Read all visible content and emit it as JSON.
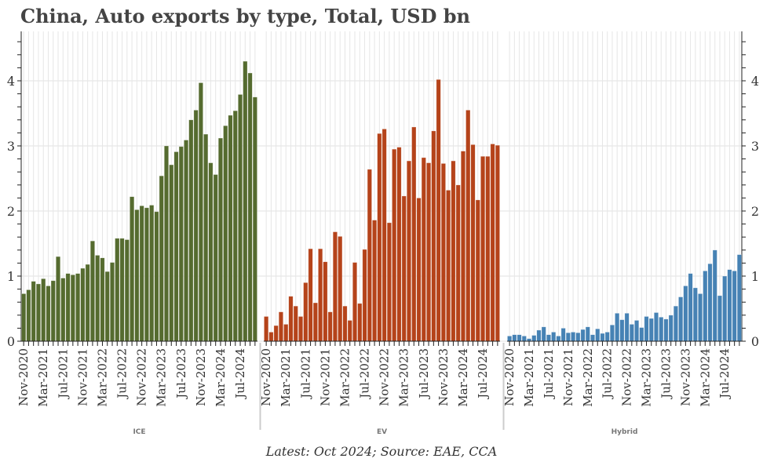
{
  "chart_data": {
    "type": "bar",
    "title": "China, Auto exports by type, Total, USD bn",
    "caption": "Latest: Oct 2024; Source: EAE, CCA",
    "ylim": [
      0,
      4.75
    ],
    "yticks": [
      "0",
      "1",
      "2",
      "3",
      "4"
    ],
    "grid": true,
    "x_tick_labels": [
      "Nov-2020",
      "Mar-2021",
      "Jul-2021",
      "Nov-2021",
      "Mar-2022",
      "Jul-2022",
      "Nov-2022",
      "Mar-2023",
      "Jul-2023",
      "Nov-2023",
      "Mar-2024",
      "Jul-2024"
    ],
    "x_range": [
      "Nov-2020",
      "Oct-2024"
    ],
    "panels": [
      {
        "name": "ICE",
        "color": "#556b2f",
        "values": [
          0.73,
          0.79,
          0.92,
          0.88,
          0.96,
          0.85,
          0.93,
          1.3,
          0.97,
          1.04,
          1.02,
          1.04,
          1.12,
          1.18,
          1.54,
          1.32,
          1.28,
          1.07,
          1.21,
          1.58,
          1.58,
          1.56,
          2.22,
          2.02,
          2.08,
          2.05,
          2.09,
          1.99,
          2.54,
          3.0,
          2.71,
          2.91,
          2.99,
          3.09,
          3.4,
          3.55,
          3.97,
          3.18,
          2.74,
          2.56,
          3.12,
          3.31,
          3.47,
          3.54,
          3.79,
          4.3,
          4.12,
          3.75
        ]
      },
      {
        "name": "EV",
        "color": "#b5431a",
        "values": [
          0.38,
          0.14,
          0.24,
          0.45,
          0.26,
          0.69,
          0.54,
          0.38,
          0.9,
          1.42,
          0.59,
          1.42,
          1.22,
          0.45,
          1.68,
          1.61,
          0.54,
          0.32,
          1.21,
          0.58,
          1.41,
          2.64,
          1.86,
          3.19,
          3.26,
          1.82,
          2.95,
          2.98,
          2.23,
          2.77,
          3.29,
          2.2,
          2.82,
          2.74,
          3.23,
          4.02,
          2.73,
          2.32,
          2.77,
          2.4,
          2.92,
          3.55,
          3.02,
          2.17,
          2.84,
          2.84,
          3.03,
          3.01
        ]
      },
      {
        "name": "Hybrid",
        "color": "#4682b4",
        "values": [
          0.08,
          0.1,
          0.1,
          0.08,
          0.04,
          0.09,
          0.17,
          0.22,
          0.1,
          0.14,
          0.08,
          0.2,
          0.13,
          0.14,
          0.13,
          0.18,
          0.22,
          0.1,
          0.19,
          0.12,
          0.14,
          0.25,
          0.43,
          0.33,
          0.43,
          0.26,
          0.32,
          0.21,
          0.38,
          0.35,
          0.44,
          0.37,
          0.34,
          0.4,
          0.54,
          0.68,
          0.85,
          1.04,
          0.82,
          0.73,
          1.08,
          1.19,
          1.4,
          0.7,
          1.0,
          1.1,
          1.08,
          1.33
        ]
      }
    ]
  }
}
